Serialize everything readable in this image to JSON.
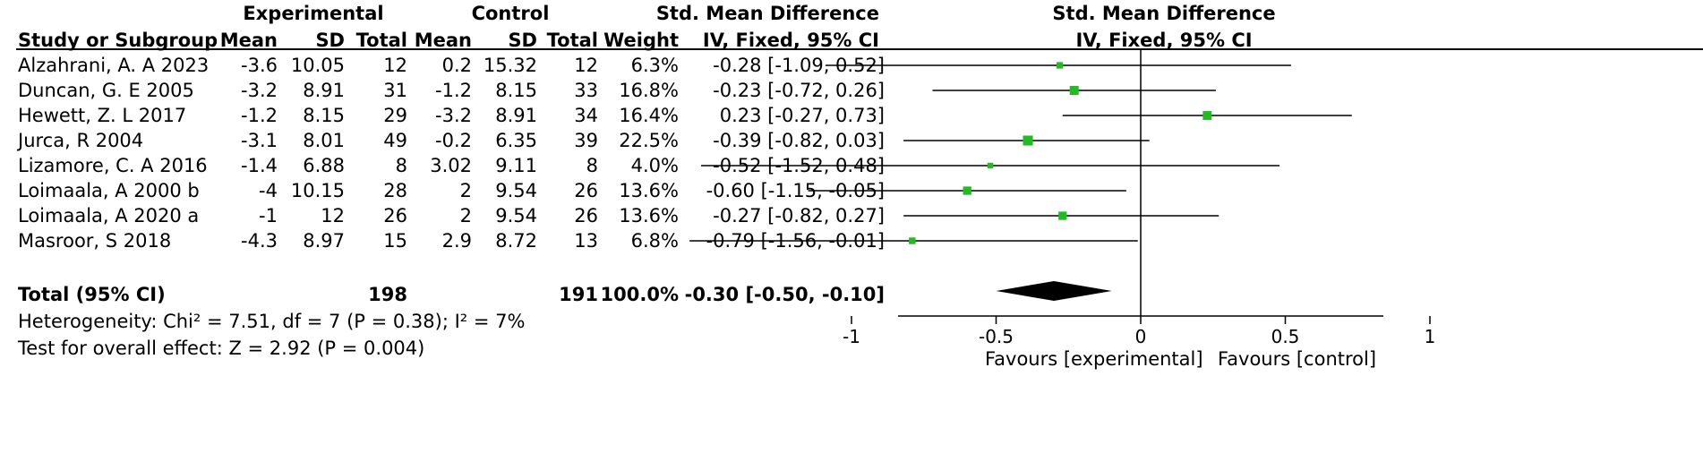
{
  "headers": {
    "experimental": "Experimental",
    "control": "Control",
    "smd_group": "Std. Mean Difference",
    "plot_title": "Std. Mean Difference",
    "plot_subtitle": "IV, Fixed, 95% CI",
    "study": "Study or Subgroup",
    "mean_e": "Mean",
    "sd_e": "SD",
    "total_e": "Total",
    "mean_c": "Mean",
    "sd_c": "SD",
    "total_c": "Total",
    "weight": "Weight",
    "ci": "IV, Fixed, 95% CI"
  },
  "rows": [
    {
      "study": "Alzahrani, A. A 2023",
      "mean_e": "-3.6",
      "sd_e": "10.05",
      "total_e": "12",
      "mean_c": "0.2",
      "sd_c": "15.32",
      "total_c": "12",
      "weight": "6.3%",
      "ci": "-0.28 [-1.09, 0.52]",
      "est": -0.28,
      "lo": -1.09,
      "hi": 0.52,
      "w": 6.3
    },
    {
      "study": "Duncan, G. E 2005",
      "mean_e": "-3.2",
      "sd_e": "8.91",
      "total_e": "31",
      "mean_c": "-1.2",
      "sd_c": "8.15",
      "total_c": "33",
      "weight": "16.8%",
      "ci": "-0.23 [-0.72, 0.26]",
      "est": -0.23,
      "lo": -0.72,
      "hi": 0.26,
      "w": 16.8
    },
    {
      "study": "Hewett, Z. L 2017",
      "mean_e": "-1.2",
      "sd_e": "8.15",
      "total_e": "29",
      "mean_c": "-3.2",
      "sd_c": "8.91",
      "total_c": "34",
      "weight": "16.4%",
      "ci": "0.23 [-0.27, 0.73]",
      "est": 0.23,
      "lo": -0.27,
      "hi": 0.73,
      "w": 16.4
    },
    {
      "study": "Jurca, R 2004",
      "mean_e": "-3.1",
      "sd_e": "8.01",
      "total_e": "49",
      "mean_c": "-0.2",
      "sd_c": "6.35",
      "total_c": "39",
      "weight": "22.5%",
      "ci": "-0.39 [-0.82, 0.03]",
      "est": -0.39,
      "lo": -0.82,
      "hi": 0.03,
      "w": 22.5
    },
    {
      "study": "Lizamore, C. A 2016",
      "mean_e": "-1.4",
      "sd_e": "6.88",
      "total_e": "8",
      "mean_c": "3.02",
      "sd_c": "9.11",
      "total_c": "8",
      "weight": "4.0%",
      "ci": "-0.52 [-1.52, 0.48]",
      "est": -0.52,
      "lo": -1.52,
      "hi": 0.48,
      "w": 4.0
    },
    {
      "study": "Loimaala, A  2000 b",
      "mean_e": "-4",
      "sd_e": "10.15",
      "total_e": "28",
      "mean_c": "2",
      "sd_c": "9.54",
      "total_c": "26",
      "weight": "13.6%",
      "ci": "-0.60 [-1.15, -0.05]",
      "est": -0.6,
      "lo": -1.15,
      "hi": -0.05,
      "w": 13.6
    },
    {
      "study": "Loimaala, A  2020 a",
      "mean_e": "-1",
      "sd_e": "12",
      "total_e": "26",
      "mean_c": "2",
      "sd_c": "9.54",
      "total_c": "26",
      "weight": "13.6%",
      "ci": "-0.27 [-0.82, 0.27]",
      "est": -0.27,
      "lo": -0.82,
      "hi": 0.27,
      "w": 13.6
    },
    {
      "study": "Masroor, S 2018",
      "mean_e": "-4.3",
      "sd_e": "8.97",
      "total_e": "15",
      "mean_c": "2.9",
      "sd_c": "8.72",
      "total_c": "13",
      "weight": "6.8%",
      "ci": "-0.79 [-1.56, -0.01]",
      "est": -0.79,
      "lo": -1.56,
      "hi": -0.01,
      "w": 6.8
    }
  ],
  "total": {
    "label": "Total (95% CI)",
    "total_e": "198",
    "total_c": "191",
    "weight": "100.0%",
    "ci": "-0.30 [-0.50, -0.10]",
    "est": -0.3,
    "lo": -0.5,
    "hi": -0.1
  },
  "heterogeneity": "Heterogeneity: Chi² = 7.51, df = 7 (P = 0.38); I² = 7%",
  "overall_effect": "Test for overall effect: Z = 2.92 (P = 0.004)",
  "favours_left": "Favours [experimental]",
  "favours_right": "Favours [control]",
  "colors": {
    "marker": "#22bb22",
    "diamond": "#000000",
    "line": "#000000"
  },
  "chart_data": {
    "type": "scatter",
    "title": "Std. Mean Difference",
    "subtitle": "IV, Fixed, 95% CI",
    "xlim": [
      -1.8,
      1.8
    ],
    "xticks": [
      -1,
      -0.5,
      0,
      0.5,
      1
    ],
    "xtick_labels": [
      "-1",
      "-0.5",
      "0",
      "0.5",
      "1"
    ],
    "reference_line": 0,
    "series": [
      {
        "name": "",
        "points": [
          {
            "label": "Alzahrani, A. A 2023",
            "x": -0.28,
            "lo": -1.09,
            "hi": 0.52,
            "weight": 6.3
          },
          {
            "label": "Duncan, G. E 2005",
            "x": -0.23,
            "lo": -0.72,
            "hi": 0.26,
            "weight": 16.8
          },
          {
            "label": "Hewett, Z. L 2017",
            "x": 0.23,
            "lo": -0.27,
            "hi": 0.73,
            "weight": 16.4
          },
          {
            "label": "Jurca, R 2004",
            "x": -0.39,
            "lo": -0.82,
            "hi": 0.03,
            "weight": 22.5
          },
          {
            "label": "Lizamore, C. A 2016",
            "x": -0.52,
            "lo": -1.52,
            "hi": 0.48,
            "weight": 4.0
          },
          {
            "label": "Loimaala, A  2000 b",
            "x": -0.6,
            "lo": -1.15,
            "hi": -0.05,
            "weight": 13.6
          },
          {
            "label": "Loimaala, A  2020 a",
            "x": -0.27,
            "lo": -0.82,
            "hi": 0.27,
            "weight": 13.6
          },
          {
            "label": "Masroor, S 2018",
            "x": -0.79,
            "lo": -1.56,
            "hi": -0.01,
            "weight": 6.8
          }
        ]
      }
    ],
    "pooled": {
      "label": "Total (95% CI)",
      "x": -0.3,
      "lo": -0.5,
      "hi": -0.1
    }
  }
}
